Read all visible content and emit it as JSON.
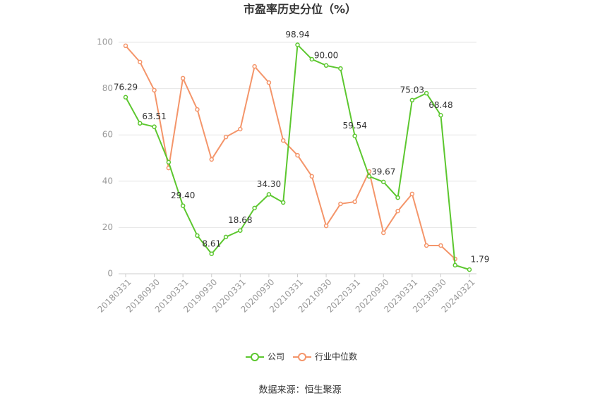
{
  "chart_data": {
    "type": "line",
    "title": "市盈率历史分位（%）",
    "source": "数据来源：恒生聚源",
    "categories": [
      "20180331",
      null,
      "20180930",
      null,
      "20190331",
      null,
      "20190930",
      null,
      "20200331",
      null,
      "20200930",
      null,
      "20210331",
      null,
      "20210930",
      null,
      "20220331",
      null,
      "20220930",
      null,
      "20230331",
      null,
      "20230930",
      null,
      "20240321"
    ],
    "series": [
      {
        "name": "公司",
        "color": "#5cc72f",
        "values": [
          76.29,
          65.0,
          63.51,
          48.2,
          29.4,
          16.5,
          8.61,
          15.9,
          18.68,
          28.4,
          34.3,
          30.8,
          98.94,
          92.7,
          90.0,
          88.7,
          59.54,
          42.1,
          39.67,
          32.9,
          75.03,
          78.0,
          68.48,
          3.7,
          1.79
        ],
        "value_labels": [
          "76.29",
          null,
          "63.51",
          null,
          "29.40",
          null,
          "8.61",
          null,
          "18.68",
          null,
          "34.30",
          null,
          "98.94",
          null,
          "90.00",
          null,
          "59.54",
          null,
          "39.67",
          null,
          "75.03",
          null,
          "68.48",
          null,
          "1.79"
        ]
      },
      {
        "name": "行业中位数",
        "color": "#f4956a",
        "values": [
          98.5,
          91.5,
          79.3,
          45.7,
          84.5,
          71.0,
          49.4,
          59.1,
          62.5,
          89.6,
          82.6,
          57.6,
          51.2,
          42.1,
          20.7,
          30.2,
          31.1,
          44.2,
          17.7,
          27.1,
          34.5,
          12.2,
          12.2,
          6.4,
          null
        ]
      }
    ],
    "ylim": [
      0,
      100
    ],
    "yticks": [
      0,
      20,
      40,
      60,
      80,
      100
    ],
    "grid": true
  }
}
